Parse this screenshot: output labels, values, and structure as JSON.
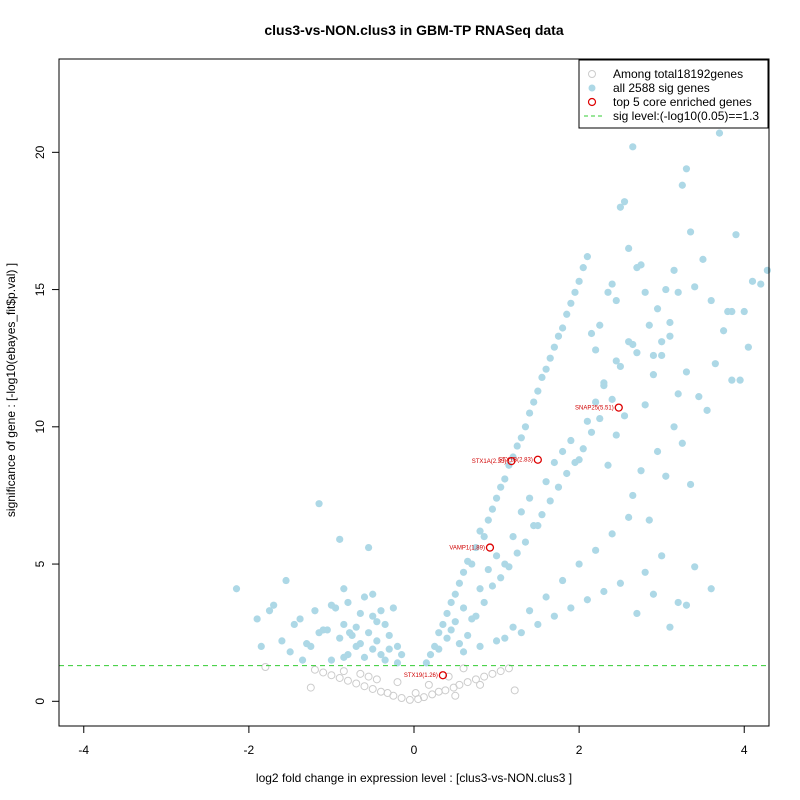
{
  "chart_data": {
    "type": "scatter",
    "title": "clus3-vs-NON.clus3 in GBM-TP RNASeq data",
    "xlabel": "log2 fold change in expression level : [clus3-vs-NON.clus3 ]",
    "ylabel": "significance of gene : [-log10(ebayes_fit$p.val) ]",
    "xlim": [
      -4.3,
      4.3
    ],
    "ylim": [
      -0.9,
      23.4
    ],
    "x_ticks": [
      -4,
      -2,
      0,
      2,
      4
    ],
    "y_ticks": [
      0,
      5,
      10,
      15,
      20
    ],
    "grid": false,
    "legend_position": "top-right",
    "sig_threshold": 1.3,
    "colors": {
      "all_genes": "#cccccc",
      "sig_genes": "#add8e6",
      "core_genes": "#dd0000",
      "sig_line": "#33cc33"
    },
    "legend": [
      {
        "label": "Among total18192genes",
        "kind": "all"
      },
      {
        "label": "all 2588 sig genes",
        "kind": "sig"
      },
      {
        "label": "top 5 core enriched genes",
        "kind": "core"
      },
      {
        "label": "sig level:(-log10(0.05)==1.3",
        "kind": "line"
      }
    ],
    "series": [
      {
        "name": "Among total18192genes",
        "x": [
          -0.05,
          0.05,
          -0.15,
          0.12,
          -0.25,
          0.22,
          -0.32,
          0.3,
          -0.4,
          0.38,
          -0.5,
          0.48,
          -0.6,
          0.55,
          -0.7,
          0.65,
          -0.8,
          0.75,
          -0.9,
          0.85,
          -1.0,
          0.95,
          -1.1,
          1.05,
          -1.2,
          1.15,
          -0.45,
          0.42,
          -0.85,
          0.8,
          -1.25,
          1.22,
          -0.2,
          0.18,
          -0.65,
          0.6,
          -1.8,
          0.02,
          -0.55,
          0.5
        ],
        "y": [
          0.05,
          0.08,
          0.12,
          0.15,
          0.2,
          0.25,
          0.3,
          0.35,
          0.35,
          0.4,
          0.45,
          0.5,
          0.55,
          0.6,
          0.65,
          0.7,
          0.75,
          0.8,
          0.85,
          0.9,
          0.95,
          1.0,
          1.05,
          1.1,
          1.15,
          1.2,
          0.8,
          0.9,
          1.1,
          0.6,
          0.5,
          0.4,
          0.7,
          0.6,
          1.0,
          1.2,
          1.25,
          0.3,
          0.9,
          0.2
        ]
      },
      {
        "name": "all 2588 sig genes",
        "x": [
          -2.15,
          -1.9,
          -1.85,
          -1.75,
          -1.7,
          -1.6,
          -1.55,
          -1.45,
          -1.38,
          -1.3,
          -1.2,
          -1.15,
          -1.1,
          -1.0,
          -0.95,
          -0.9,
          -0.85,
          -0.8,
          -0.78,
          -0.7,
          -0.65,
          -0.6,
          -0.55,
          -0.5,
          -0.45,
          -0.4,
          -0.35,
          -0.3,
          -0.25,
          -0.2,
          -0.15,
          -0.45,
          -0.7,
          -0.9,
          -1.05,
          -1.25,
          -1.5,
          -0.6,
          -0.35,
          -0.8,
          -0.2,
          -0.5,
          -1.0,
          -0.75,
          -0.3,
          -0.55,
          -0.85,
          -0.4,
          -1.35,
          -0.65,
          0.15,
          0.2,
          0.25,
          0.3,
          0.35,
          0.4,
          0.45,
          0.5,
          0.55,
          0.6,
          0.65,
          0.7,
          0.75,
          0.8,
          0.85,
          0.9,
          0.95,
          1.0,
          1.05,
          1.1,
          1.15,
          1.2,
          1.25,
          1.3,
          1.35,
          1.4,
          1.45,
          1.5,
          1.55,
          1.6,
          1.65,
          1.7,
          1.75,
          1.8,
          1.85,
          1.9,
          1.95,
          2.0,
          2.05,
          2.1,
          2.15,
          2.2,
          2.25,
          2.3,
          2.35,
          2.4,
          2.45,
          2.5,
          2.55,
          2.6,
          2.65,
          2.7,
          2.75,
          2.8,
          2.85,
          2.9,
          2.95,
          3.0,
          3.05,
          3.1,
          3.15,
          3.2,
          3.25,
          3.3,
          3.35,
          3.4,
          3.5,
          3.6,
          3.7,
          3.8,
          3.9,
          4.0,
          4.1,
          4.2,
          4.28,
          0.4,
          0.5,
          0.6,
          0.7,
          0.8,
          0.9,
          1.0,
          1.1,
          1.2,
          1.3,
          1.4,
          1.5,
          1.6,
          1.7,
          1.8,
          1.9,
          2.0,
          2.1,
          2.2,
          2.3,
          2.4,
          2.5,
          2.6,
          2.7,
          2.8,
          2.9,
          3.0,
          3.1,
          3.2,
          0.3,
          0.45,
          0.55,
          0.65,
          0.75,
          0.85,
          0.95,
          1.05,
          1.15,
          1.25,
          1.35,
          1.45,
          1.55,
          1.65,
          1.75,
          1.85,
          1.95,
          2.05,
          2.15,
          2.25,
          2.35,
          2.45,
          2.55,
          2.65,
          2.75,
          2.85,
          2.95,
          3.05,
          3.15,
          3.25,
          3.35,
          3.45,
          3.55,
          3.65,
          3.75,
          3.85,
          3.95,
          4.05,
          1.0,
          1.2,
          1.4,
          1.6,
          1.8,
          2.0,
          2.2,
          2.4,
          2.6,
          2.8,
          3.0,
          3.2,
          3.4,
          3.6,
          0.6,
          0.8,
          1.1,
          1.3,
          1.5,
          1.7,
          1.9,
          2.1,
          2.3,
          2.5,
          2.7,
          2.9,
          3.1,
          3.3,
          -1.15,
          -0.85,
          -0.5,
          2.45,
          2.65,
          3.85,
          3.3
        ],
        "y": [
          4.1,
          3.0,
          2.0,
          3.3,
          3.5,
          2.2,
          4.4,
          2.8,
          3.0,
          2.1,
          3.3,
          7.2,
          2.6,
          3.5,
          3.4,
          5.9,
          4.1,
          3.6,
          2.5,
          2.7,
          3.2,
          3.8,
          5.6,
          3.9,
          2.9,
          3.3,
          2.8,
          2.4,
          3.4,
          2.0,
          1.7,
          2.2,
          2.0,
          2.3,
          2.6,
          2.0,
          1.8,
          1.6,
          1.5,
          1.7,
          1.4,
          1.9,
          1.5,
          2.4,
          1.9,
          2.5,
          1.6,
          1.7,
          1.5,
          2.1,
          1.4,
          1.7,
          2.0,
          2.5,
          2.8,
          3.2,
          3.6,
          3.9,
          4.3,
          4.7,
          5.1,
          5.0,
          5.6,
          6.2,
          6.0,
          6.6,
          7.0,
          7.4,
          7.8,
          8.1,
          8.6,
          8.9,
          9.3,
          9.6,
          10.0,
          10.5,
          10.9,
          11.3,
          11.8,
          12.1,
          12.5,
          12.9,
          13.3,
          13.6,
          14.1,
          14.5,
          14.9,
          15.3,
          15.8,
          16.2,
          13.4,
          12.8,
          13.7,
          11.5,
          14.9,
          15.2,
          12.4,
          18.0,
          18.2,
          16.5,
          20.2,
          15.8,
          15.9,
          14.9,
          13.7,
          12.6,
          14.3,
          13.1,
          15.0,
          13.8,
          15.7,
          14.9,
          18.8,
          19.4,
          17.1,
          15.1,
          16.1,
          14.6,
          20.7,
          14.2,
          17.0,
          14.2,
          15.3,
          15.2,
          15.7,
          2.3,
          2.9,
          3.4,
          3.0,
          4.1,
          4.8,
          5.3,
          5.0,
          6.0,
          6.9,
          7.4,
          6.4,
          8.0,
          8.7,
          9.1,
          9.5,
          8.8,
          10.2,
          10.9,
          11.6,
          11.0,
          12.2,
          13.1,
          12.7,
          10.8,
          11.9,
          12.6,
          13.3,
          11.2,
          1.9,
          2.6,
          2.1,
          2.4,
          3.1,
          3.6,
          4.2,
          4.5,
          4.9,
          5.4,
          5.8,
          6.4,
          6.8,
          7.3,
          7.8,
          8.3,
          8.7,
          9.2,
          9.8,
          10.3,
          8.6,
          9.7,
          10.4,
          7.5,
          8.4,
          6.6,
          9.1,
          8.2,
          10.0,
          9.4,
          7.9,
          11.1,
          10.6,
          12.3,
          13.5,
          11.7,
          11.7,
          12.9,
          2.2,
          2.7,
          3.3,
          3.8,
          4.4,
          5.0,
          5.5,
          6.1,
          6.7,
          4.7,
          5.3,
          3.6,
          4.9,
          4.1,
          1.8,
          2.0,
          2.3,
          2.5,
          2.8,
          3.1,
          3.4,
          3.7,
          4.0,
          4.3,
          3.2,
          3.9,
          2.7,
          3.5,
          2.5,
          2.8,
          3.1,
          14.6,
          13.0,
          14.2,
          12.0
        ]
      },
      {
        "name": "top 5 core enriched genes",
        "x": [
          2.48,
          1.5,
          1.18,
          0.92,
          0.35
        ],
        "y": [
          10.7,
          8.8,
          8.75,
          5.6,
          0.95
        ]
      }
    ],
    "annotations": [
      {
        "text": "SNAP25(5.51)",
        "x": 2.48,
        "y": 10.7
      },
      {
        "text": "STX1B(2.83)",
        "x": 1.5,
        "y": 8.8
      },
      {
        "text": "STX1A(2.33)",
        "x": 1.18,
        "y": 8.75
      },
      {
        "text": "VAMP1(1.89)",
        "x": 0.92,
        "y": 5.6
      },
      {
        "text": "STX19(1.26)",
        "x": 0.35,
        "y": 0.95
      }
    ]
  }
}
